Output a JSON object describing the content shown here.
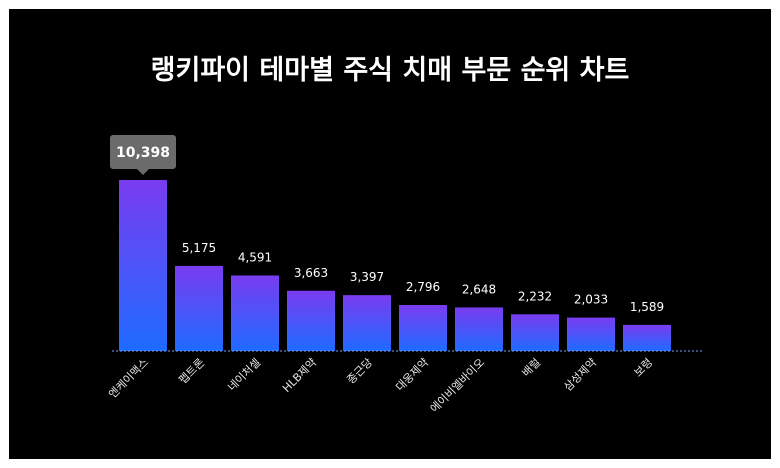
{
  "colors": {
    "background": "#000000",
    "bar_top": "#7a3cf0",
    "bar_bottom": "#1e6bff",
    "callout": "#6b6b6b",
    "text": "#ffffff"
  },
  "chart_data": {
    "type": "bar",
    "title": "랭키파이 테마별 주식 치매 부문 순위 차트",
    "categories": [
      "엔케이맥스",
      "펩트론",
      "네이처셀",
      "HLB제약",
      "종근당",
      "대웅제약",
      "에이비엘바이오",
      "배럴",
      "삼성제약",
      "보령"
    ],
    "values": [
      10398,
      5175,
      4591,
      3663,
      3397,
      2796,
      2648,
      2232,
      2033,
      1589
    ],
    "value_labels": [
      "10,398",
      "5,175",
      "4,591",
      "3,663",
      "3,397",
      "2,796",
      "2,648",
      "2,232",
      "2,033",
      "1,589"
    ],
    "highlight_index": 0,
    "ylim": [
      0,
      10398
    ],
    "grid": false,
    "legend": "none",
    "xlabel": "",
    "ylabel": ""
  }
}
